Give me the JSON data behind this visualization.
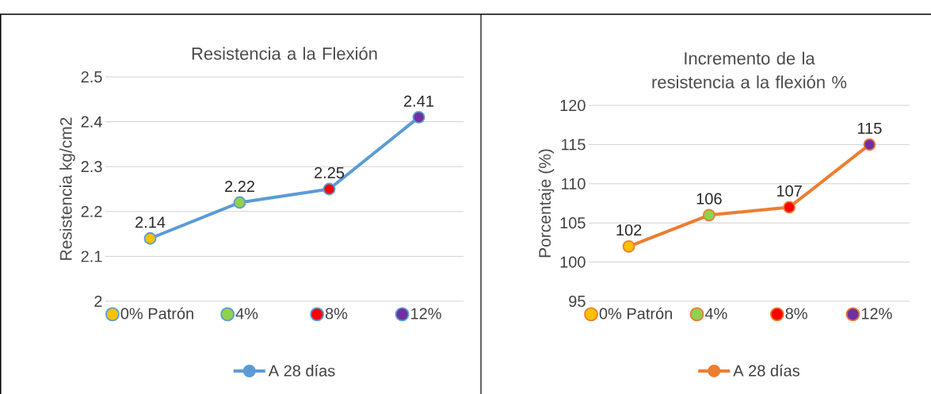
{
  "chart_data": [
    {
      "type": "line",
      "title": "Resistencia a la Flexión",
      "ylabel": "Resistencia kg/cm2",
      "categories": [
        "0% Patrón",
        "4%",
        "8%",
        "12%"
      ],
      "series": [
        {
          "name": "A 28 días",
          "color": "#5b9bd5",
          "colors": [
            "#ffc000",
            "#92d050",
            "#ff0000",
            "#7030a0"
          ],
          "values": [
            2.14,
            2.22,
            2.25,
            2.41
          ]
        }
      ],
      "ylim": [
        2,
        2.5
      ],
      "yticks": [
        2,
        2.1,
        2.2,
        2.3,
        2.4,
        2.5
      ],
      "grid": "y",
      "legend": "bottom",
      "marker": "circle",
      "line_style": "solid",
      "data_labels": true
    },
    {
      "type": "line",
      "title": "Incremento de la resistencia a la flexión %",
      "ylabel": "Porcentaje (%)",
      "categories": [
        "0% Patrón",
        "4%",
        "8%",
        "12%"
      ],
      "series": [
        {
          "name": "A 28 días",
          "color": "#ed7d31",
          "colors": [
            "#ffc000",
            "#92d050",
            "#ff0000",
            "#7030a0"
          ],
          "values": [
            102,
            106,
            107,
            115
          ]
        }
      ],
      "ylim": [
        95,
        120
      ],
      "yticks": [
        95,
        100,
        105,
        110,
        115,
        120
      ],
      "grid": "y",
      "legend": "bottom",
      "marker": "circle",
      "line_style": "solid",
      "data_labels": true
    }
  ]
}
